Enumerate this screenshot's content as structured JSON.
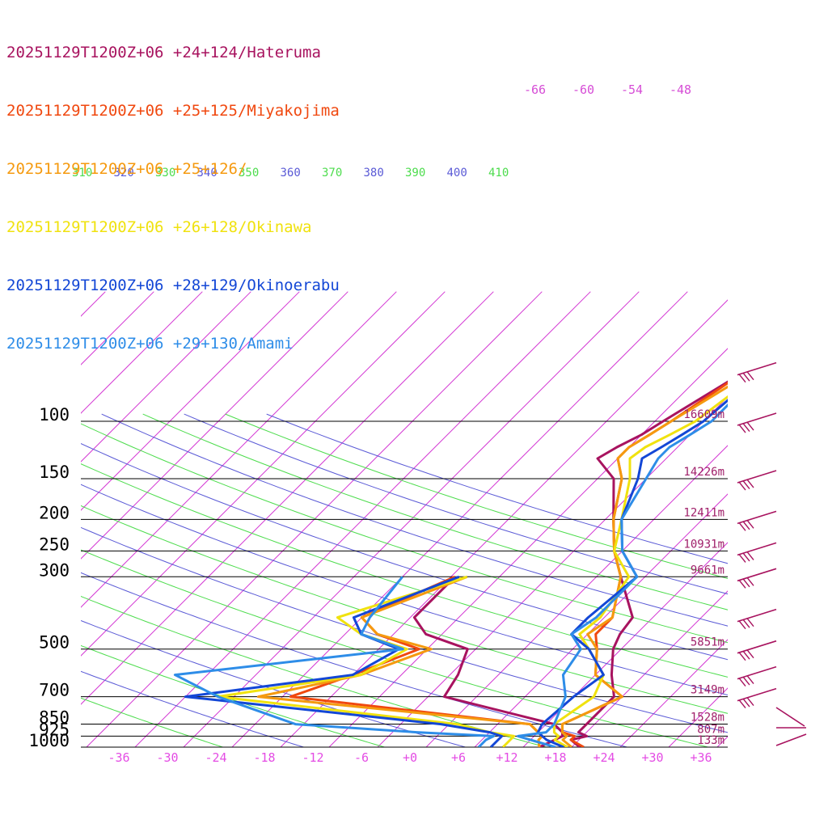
{
  "chart_data": {
    "type": "line",
    "title": "",
    "xlabel": "",
    "ylabel": "",
    "x_range_celsius": [
      -40,
      40
    ],
    "pressure_range_hpa": [
      1000,
      100
    ],
    "temperature_ticks": [
      "-36",
      "-30",
      "-24",
      "-18",
      "-12",
      "-6",
      "+0",
      "+6",
      "+12",
      "+18",
      "+24",
      "+30",
      "+36"
    ],
    "temperature_tick_values": [
      -36,
      -30,
      -24,
      -18,
      -12,
      -6,
      0,
      6,
      12,
      18,
      24,
      30,
      36
    ],
    "pressure_levels": [
      {
        "label": "100",
        "p": 100,
        "height": "16609m"
      },
      {
        "label": "150",
        "p": 150,
        "height": "14226m"
      },
      {
        "label": "200",
        "p": 200,
        "height": "12411m"
      },
      {
        "label": "250",
        "p": 250,
        "height": "10931m"
      },
      {
        "label": "300",
        "p": 300,
        "height": "9661m"
      },
      {
        "label": "500",
        "p": 500,
        "height": "5851m"
      },
      {
        "label": "700",
        "p": 700,
        "height": "3149m"
      },
      {
        "label": "850",
        "p": 850,
        "height": "1528m"
      },
      {
        "label": "925",
        "p": 925,
        "height": "807m"
      },
      {
        "label": "1000",
        "p": 1000,
        "height": "133m"
      }
    ],
    "theta_labels": [
      {
        "text": "310",
        "color": "#4ddc4d"
      },
      {
        "text": "320",
        "color": "#5a5ad6"
      },
      {
        "text": "330",
        "color": "#4ddc4d"
      },
      {
        "text": "340",
        "color": "#5a5ad6"
      },
      {
        "text": "350",
        "color": "#4ddc4d"
      },
      {
        "text": "360",
        "color": "#5a5ad6"
      },
      {
        "text": "370",
        "color": "#4ddc4d"
      },
      {
        "text": "380",
        "color": "#5a5ad6"
      },
      {
        "text": "390",
        "color": "#4ddc4d"
      },
      {
        "text": "400",
        "color": "#5a5ad6"
      },
      {
        "text": "410",
        "color": "#4ddc4d"
      }
    ],
    "upper_temp_labels": [
      "-66",
      "-60",
      "-54",
      "-48"
    ],
    "series": [
      {
        "name": "20251129T1200Z+06 +24+124/Hateruma",
        "color": "#a8135f",
        "temperature": [
          [
            1000,
            21
          ],
          [
            950,
            19
          ],
          [
            925,
            20.5
          ],
          [
            900,
            19
          ],
          [
            850,
            19
          ],
          [
            700,
            19
          ],
          [
            600,
            16
          ],
          [
            500,
            13
          ],
          [
            450,
            12
          ],
          [
            400,
            11.5
          ],
          [
            300,
            5
          ],
          [
            250,
            1
          ],
          [
            200,
            -3
          ],
          [
            150,
            -8
          ],
          [
            130,
            -12.5
          ],
          [
            120,
            -11.5
          ],
          [
            110,
            -10
          ],
          [
            100,
            -9
          ],
          [
            70,
            -5
          ],
          [
            50,
            1
          ]
        ],
        "dewpoint": [
          [
            1000,
            16
          ],
          [
            950,
            17
          ],
          [
            925,
            17.5
          ],
          [
            900,
            17
          ],
          [
            850,
            15
          ],
          [
            700,
            -2
          ],
          [
            600,
            -3
          ],
          [
            500,
            -5
          ],
          [
            450,
            -12
          ],
          [
            400,
            -15.5
          ],
          [
            300,
            -15.5
          ]
        ]
      },
      {
        "name": "20251129T1200Z+06 +25+125/Miyakojima",
        "color": "#f0480f",
        "temperature": [
          [
            1000,
            21.5
          ],
          [
            950,
            19
          ],
          [
            925,
            19
          ],
          [
            900,
            17
          ],
          [
            850,
            16
          ],
          [
            700,
            20
          ],
          [
            600,
            14
          ],
          [
            500,
            11
          ],
          [
            450,
            9
          ],
          [
            400,
            9
          ],
          [
            300,
            5
          ],
          [
            250,
            1
          ],
          [
            200,
            -3
          ],
          [
            150,
            -7
          ],
          [
            130,
            -10
          ],
          [
            120,
            -10
          ],
          [
            110,
            -9
          ],
          [
            100,
            -8
          ],
          [
            70,
            -5
          ],
          [
            50,
            1
          ]
        ],
        "dewpoint": [
          [
            1000,
            16
          ],
          [
            950,
            15
          ],
          [
            925,
            15
          ],
          [
            900,
            14
          ],
          [
            850,
            12
          ],
          [
            700,
            -21
          ],
          [
            600,
            -16
          ],
          [
            500,
            -11
          ],
          [
            450,
            -18
          ],
          [
            400,
            -22
          ],
          [
            300,
            -15.5
          ]
        ]
      },
      {
        "name": "20251129T1200Z+06 +25+126/",
        "color": "#f59a0f",
        "temperature": [
          [
            1000,
            20
          ],
          [
            950,
            18
          ],
          [
            925,
            18
          ],
          [
            900,
            17
          ],
          [
            850,
            16
          ],
          [
            700,
            20
          ],
          [
            600,
            14
          ],
          [
            500,
            11
          ],
          [
            450,
            8
          ],
          [
            400,
            9
          ],
          [
            300,
            5
          ],
          [
            250,
            1
          ],
          [
            200,
            -3
          ],
          [
            150,
            -7
          ],
          [
            130,
            -10
          ],
          [
            120,
            -10
          ],
          [
            110,
            -9
          ],
          [
            100,
            -8
          ],
          [
            70,
            -4
          ],
          [
            50,
            1
          ]
        ],
        "dewpoint": [
          [
            1000,
            16
          ],
          [
            950,
            15
          ],
          [
            925,
            15
          ],
          [
            900,
            14
          ],
          [
            850,
            12
          ],
          [
            700,
            -25
          ],
          [
            600,
            -15
          ],
          [
            500,
            -9.5
          ],
          [
            450,
            -18
          ],
          [
            400,
            -22
          ],
          [
            300,
            -14
          ]
        ]
      },
      {
        "name": "20251129T1200Z+06 +26+128/Okinawa",
        "color": "#f0e20f",
        "temperature": [
          [
            1000,
            19.5
          ],
          [
            950,
            17
          ],
          [
            925,
            17
          ],
          [
            900,
            16
          ],
          [
            850,
            15
          ],
          [
            700,
            16.5
          ],
          [
            600,
            15
          ],
          [
            500,
            10
          ],
          [
            450,
            7
          ],
          [
            400,
            7.5
          ],
          [
            300,
            6
          ],
          [
            250,
            1
          ],
          [
            200,
            -2
          ],
          [
            150,
            -6
          ],
          [
            130,
            -8.5
          ],
          [
            120,
            -8
          ],
          [
            110,
            -6.5
          ],
          [
            100,
            -5
          ],
          [
            70,
            -3
          ],
          [
            50,
            2
          ]
        ],
        "dewpoint": [
          [
            1000,
            11.5
          ],
          [
            950,
            11.5
          ],
          [
            925,
            11.5
          ],
          [
            900,
            8
          ],
          [
            850,
            3
          ],
          [
            700,
            -30
          ],
          [
            600,
            -15
          ],
          [
            500,
            -12.5
          ],
          [
            450,
            -20
          ],
          [
            400,
            -25
          ],
          [
            300,
            -14
          ]
        ]
      },
      {
        "name": "20251129T1200Z+06 +28+129/Okinoerabu",
        "color": "#1347d6",
        "temperature": [
          [
            1000,
            19
          ],
          [
            950,
            16
          ],
          [
            925,
            15
          ],
          [
            900,
            14
          ],
          [
            850,
            13.5
          ],
          [
            700,
            14
          ],
          [
            600,
            15
          ],
          [
            500,
            10
          ],
          [
            450,
            6
          ],
          [
            400,
            6
          ],
          [
            300,
            7
          ],
          [
            250,
            2
          ],
          [
            200,
            -2
          ],
          [
            150,
            -5
          ],
          [
            130,
            -7
          ],
          [
            120,
            -6
          ],
          [
            110,
            -5
          ],
          [
            100,
            -4
          ],
          [
            70,
            -3
          ],
          [
            50,
            2.5
          ]
        ],
        "dewpoint": [
          [
            1000,
            10
          ],
          [
            950,
            10
          ],
          [
            925,
            10
          ],
          [
            900,
            8
          ],
          [
            850,
            1
          ],
          [
            700,
            -34
          ],
          [
            600,
            -16
          ],
          [
            500,
            -13.5
          ],
          [
            450,
            -20
          ],
          [
            400,
            -23
          ],
          [
            300,
            -15
          ]
        ]
      },
      {
        "name": "20251129T1200Z+06 +29+130/Amami",
        "color": "#2e8de8",
        "temperature": [
          [
            1000,
            18
          ],
          [
            950,
            14
          ],
          [
            925,
            12
          ],
          [
            900,
            15
          ],
          [
            850,
            15
          ],
          [
            700,
            13
          ],
          [
            600,
            10
          ],
          [
            500,
            9
          ],
          [
            450,
            6
          ],
          [
            400,
            7
          ],
          [
            300,
            7
          ],
          [
            250,
            2
          ],
          [
            200,
            -2
          ],
          [
            150,
            -4
          ],
          [
            130,
            -5
          ],
          [
            120,
            -5
          ],
          [
            110,
            -4
          ],
          [
            100,
            -3
          ],
          [
            70,
            -3
          ],
          [
            50,
            3
          ]
        ],
        "dewpoint": [
          [
            1000,
            8.5
          ],
          [
            950,
            8.5
          ],
          [
            925,
            9
          ],
          [
            900,
            -1
          ],
          [
            850,
            -17
          ],
          [
            700,
            -30
          ],
          [
            600,
            -38
          ],
          [
            500,
            -13
          ],
          [
            450,
            -20
          ],
          [
            400,
            -21
          ],
          [
            300,
            -22
          ]
        ]
      }
    ],
    "wind_barbs_present": true,
    "grid": true,
    "legend": "top-left"
  }
}
